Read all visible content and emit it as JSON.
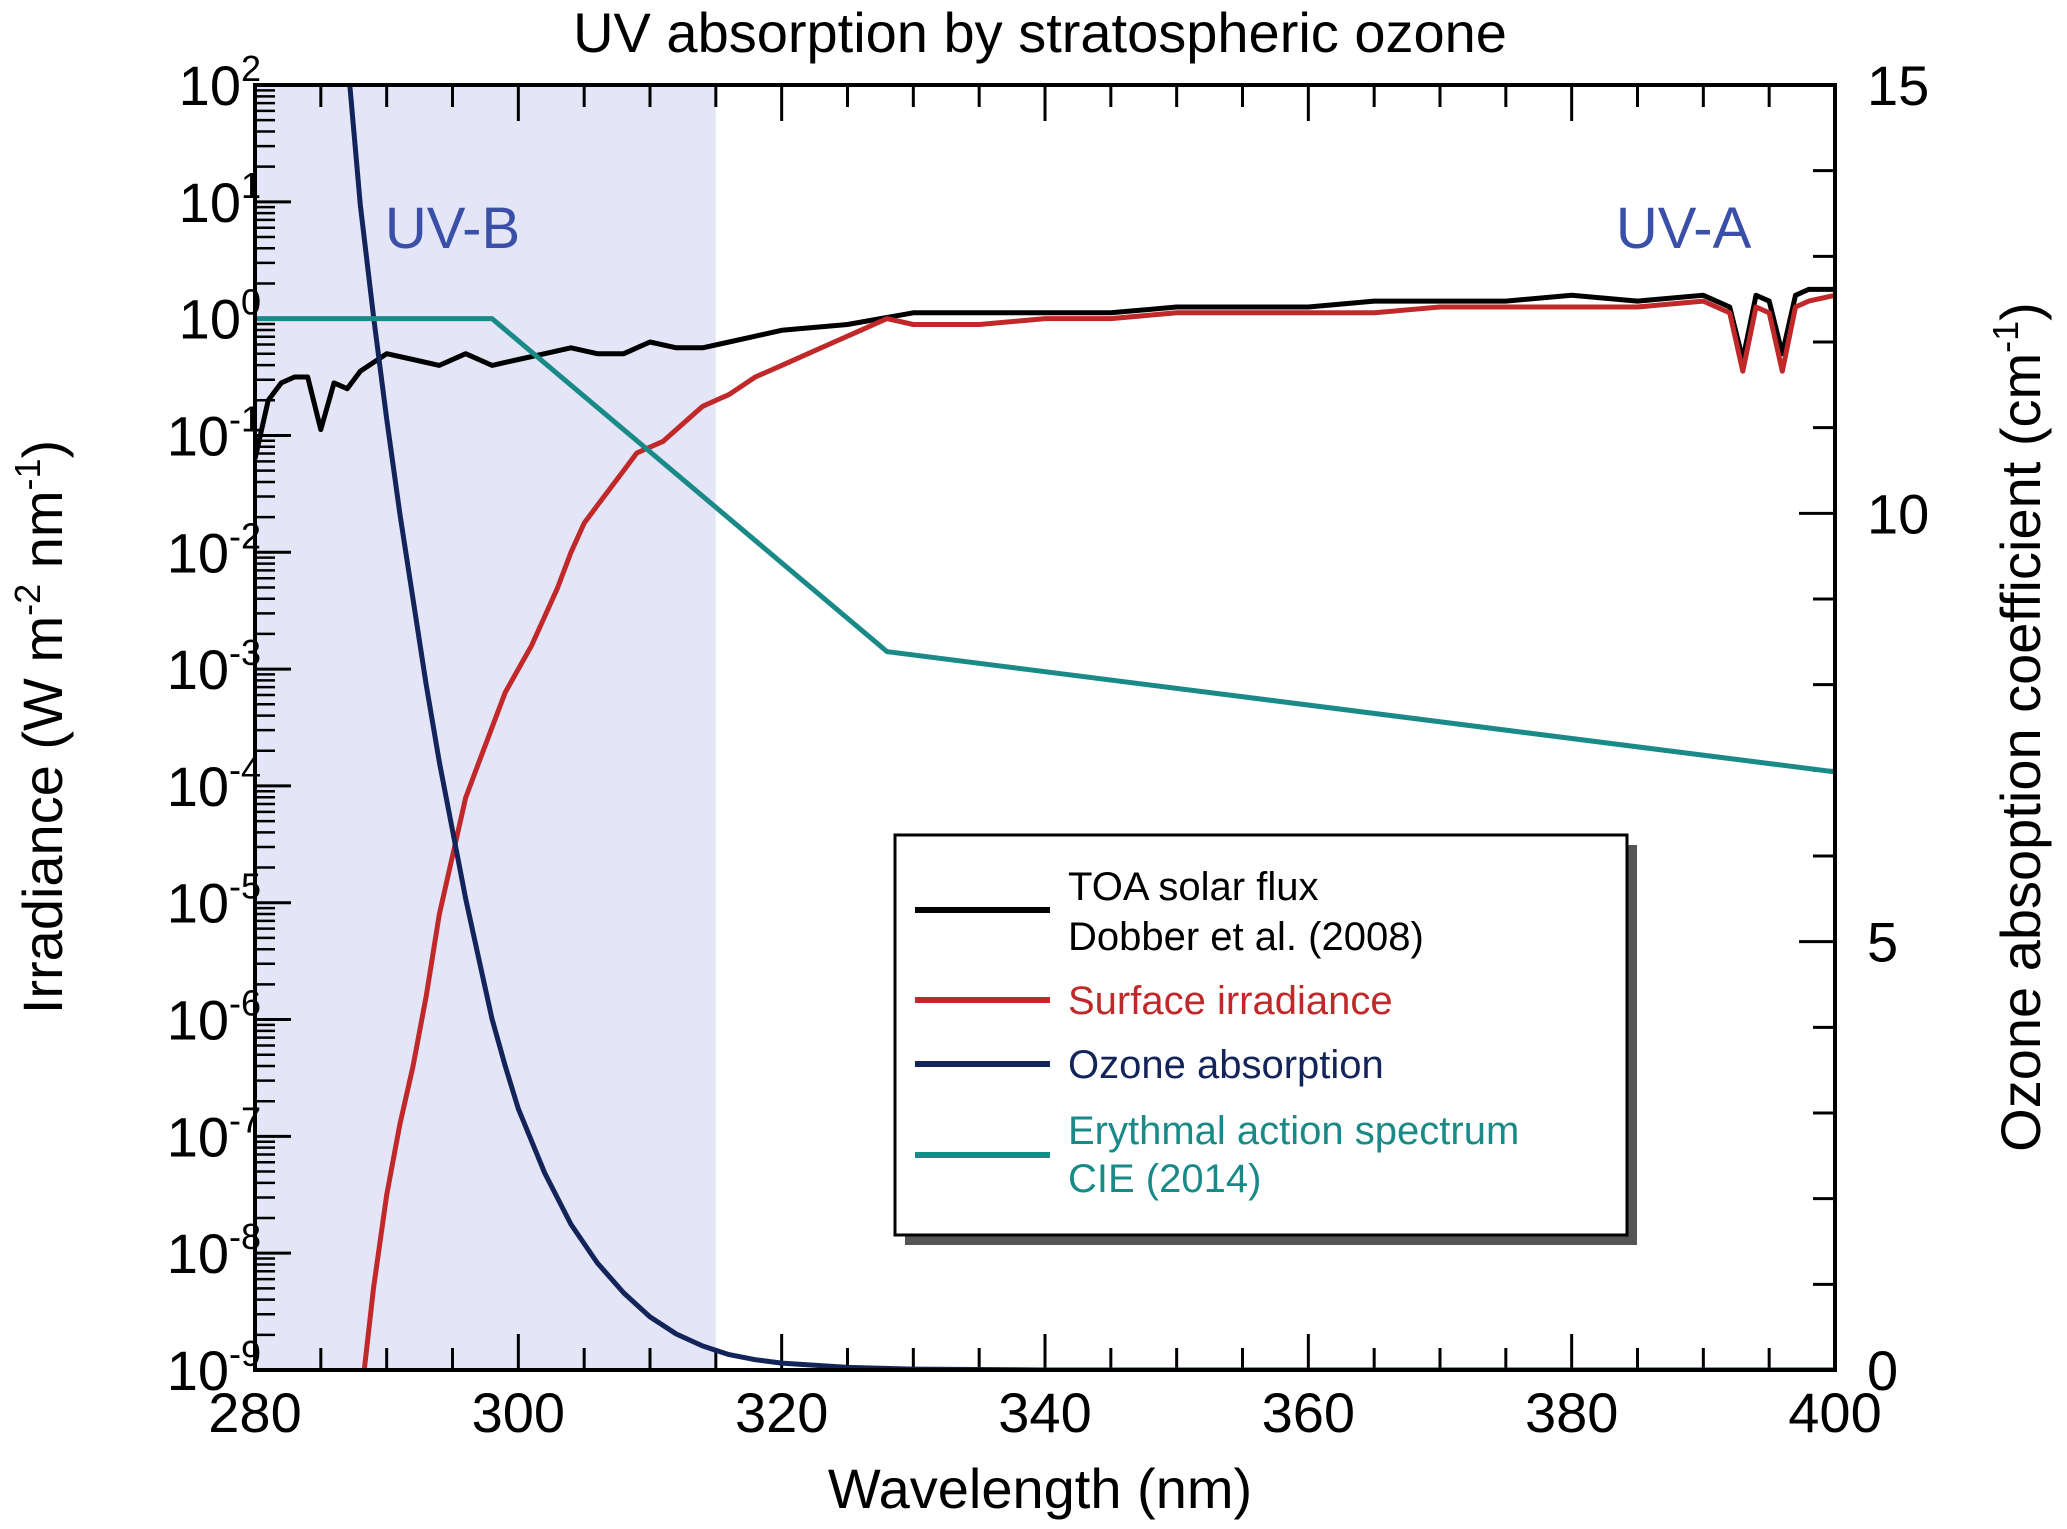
{
  "chart_data": {
    "type": "line",
    "title": "UV absorption by stratospheric ozone",
    "xlabel": "Wavelength (nm)",
    "ylabel_left": "Irradiance (W m-2 nm-1)",
    "ylabel_right": "Ozone absoption coefficient (cm-1)",
    "xlim": [
      280,
      400
    ],
    "ylim_left_log10": [
      -9,
      2
    ],
    "ylim_right": [
      0,
      15
    ],
    "x_ticks": [
      "280",
      "300",
      "320",
      "340",
      "360",
      "380",
      "400"
    ],
    "y_left_ticks": [
      {
        "base": "10",
        "exp": "-9"
      },
      {
        "base": "10",
        "exp": "-8"
      },
      {
        "base": "10",
        "exp": "-7"
      },
      {
        "base": "10",
        "exp": "-6"
      },
      {
        "base": "10",
        "exp": "-5"
      },
      {
        "base": "10",
        "exp": "-4"
      },
      {
        "base": "10",
        "exp": "-3"
      },
      {
        "base": "10",
        "exp": "-2"
      },
      {
        "base": "10",
        "exp": "-1"
      },
      {
        "base": "10",
        "exp": "0"
      },
      {
        "base": "10",
        "exp": "1"
      },
      {
        "base": "10",
        "exp": "2"
      }
    ],
    "y_right_ticks": [
      "0",
      "5",
      "10",
      "15"
    ],
    "bands": [
      {
        "label": "UV-B",
        "x_range": [
          280,
          315
        ],
        "color": "#e4e5f6"
      },
      {
        "label": "UV-A",
        "x_range": [
          315,
          400
        ],
        "color": "#ffffff"
      }
    ],
    "series": [
      {
        "name": "TOA solar flux",
        "name_line2": "Dobber et al. (2008)",
        "axis": "left",
        "color": "#000000",
        "x": [
          280,
          281,
          282,
          283,
          284,
          285,
          286,
          287,
          288,
          290,
          292,
          294,
          296,
          298,
          300,
          302,
          304,
          306,
          308,
          310,
          312,
          314,
          316,
          318,
          320,
          325,
          330,
          335,
          340,
          345,
          350,
          355,
          360,
          365,
          370,
          375,
          380,
          385,
          390,
          392,
          393,
          394,
          395,
          396,
          397,
          398,
          400
        ],
        "log10_values": [
          -1.2,
          -0.7,
          -0.55,
          -0.5,
          -0.5,
          -0.95,
          -0.55,
          -0.6,
          -0.45,
          -0.3,
          -0.35,
          -0.4,
          -0.3,
          -0.4,
          -0.35,
          -0.3,
          -0.25,
          -0.3,
          -0.3,
          -0.2,
          -0.25,
          -0.25,
          -0.2,
          -0.15,
          -0.1,
          -0.05,
          0.05,
          0.05,
          0.05,
          0.05,
          0.1,
          0.1,
          0.1,
          0.15,
          0.15,
          0.15,
          0.2,
          0.15,
          0.2,
          0.1,
          -0.35,
          0.2,
          0.15,
          -0.3,
          0.2,
          0.25,
          0.25
        ]
      },
      {
        "name": "Surface irradiance",
        "axis": "left",
        "color": "#c0282a",
        "x": [
          288,
          289,
          290,
          291,
          292,
          293,
          294,
          295,
          296,
          297,
          298,
          299,
          300,
          301,
          302,
          303,
          304,
          305,
          306,
          307,
          308,
          309,
          310,
          311,
          312,
          313,
          314,
          315,
          316,
          318,
          320,
          322,
          324,
          326,
          328,
          330,
          335,
          340,
          345,
          350,
          355,
          360,
          365,
          370,
          375,
          380,
          385,
          390,
          392,
          393,
          394,
          395,
          396,
          397,
          398,
          400
        ],
        "log10_values": [
          -9.3,
          -8.3,
          -7.5,
          -6.9,
          -6.4,
          -5.8,
          -5.1,
          -4.6,
          -4.1,
          -3.8,
          -3.5,
          -3.2,
          -3.0,
          -2.8,
          -2.55,
          -2.3,
          -2.0,
          -1.75,
          -1.6,
          -1.45,
          -1.3,
          -1.15,
          -1.1,
          -1.05,
          -0.95,
          -0.85,
          -0.75,
          -0.7,
          -0.65,
          -0.5,
          -0.4,
          -0.3,
          -0.2,
          -0.1,
          0.0,
          -0.05,
          -0.05,
          0.0,
          0.0,
          0.05,
          0.05,
          0.05,
          0.05,
          0.1,
          0.1,
          0.1,
          0.1,
          0.15,
          0.05,
          -0.45,
          0.1,
          0.05,
          -0.45,
          0.1,
          0.15,
          0.2
        ]
      },
      {
        "name": "Ozone absorption",
        "axis": "right",
        "color": "#13245a",
        "x": [
          287.2,
          288,
          289,
          290,
          291,
          292,
          293,
          294,
          295,
          296,
          297,
          298,
          299,
          300,
          302,
          304,
          306,
          308,
          310,
          312,
          314,
          316,
          318,
          320,
          325,
          330,
          340,
          360,
          380,
          400
        ],
        "values": [
          15.0,
          13.6,
          12.3,
          11.1,
          10.0,
          9.0,
          8.0,
          7.1,
          6.3,
          5.5,
          4.8,
          4.1,
          3.55,
          3.05,
          2.3,
          1.7,
          1.25,
          0.9,
          0.62,
          0.42,
          0.28,
          0.18,
          0.12,
          0.08,
          0.03,
          0.01,
          0.0,
          0.0,
          0.0,
          0.0
        ]
      },
      {
        "name": "Erythmal action spectrum",
        "name_line2": "CIE (2014)",
        "axis": "left",
        "color": "#198a87",
        "x": [
          280,
          298,
          328,
          400
        ],
        "log10_values": [
          0.0,
          0.0,
          -2.85,
          -3.88
        ]
      }
    ],
    "legend": {
      "position": "lower-right"
    },
    "grid": false
  }
}
